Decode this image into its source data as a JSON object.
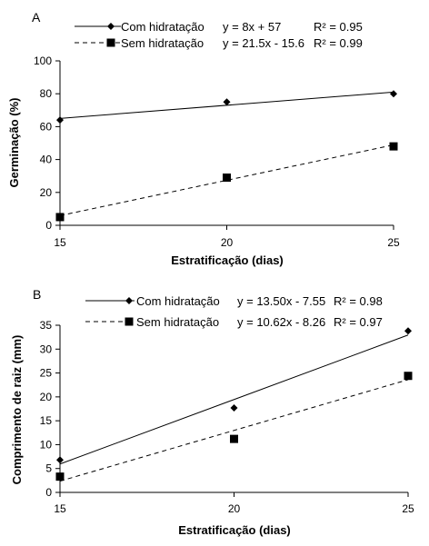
{
  "chart_data": [
    {
      "type": "scatter",
      "panel_label": "A",
      "xlabel": "Estratificação (dias)",
      "ylabel": "Germinação (%)",
      "xlim": [
        15,
        25
      ],
      "ylim": [
        0,
        100
      ],
      "x_ticks": [
        "15",
        "20",
        "25"
      ],
      "y_ticks": [
        "0",
        "20",
        "40",
        "60",
        "80",
        "100"
      ],
      "grid": false,
      "legend_position": "top",
      "series": [
        {
          "name": "Com hidratação",
          "marker": "diamond",
          "line_style": "solid",
          "equation": "y = 8x + 57",
          "r2": "R² = 0.95",
          "x": [
            15,
            20,
            25
          ],
          "values": [
            64,
            75,
            80
          ],
          "trend": [
            65,
            81
          ]
        },
        {
          "name": "Sem hidratação",
          "marker": "square",
          "line_style": "dashed",
          "equation": "y = 21.5x - 15.6",
          "r2": "R² = 0.99",
          "x": [
            15,
            20,
            25
          ],
          "values": [
            5,
            29,
            48
          ],
          "trend": [
            5.9,
            48.9
          ]
        }
      ]
    },
    {
      "type": "scatter",
      "panel_label": "B",
      "xlabel": "Estratificação (dias)",
      "ylabel": "Comprimento de raiz (mm)",
      "xlim": [
        15,
        25
      ],
      "ylim": [
        0,
        35
      ],
      "x_ticks": [
        "15",
        "20",
        "25"
      ],
      "y_ticks": [
        "0",
        "5",
        "10",
        "15",
        "20",
        "25",
        "30",
        "35"
      ],
      "grid": false,
      "legend_position": "top",
      "series": [
        {
          "name": "Com hidratação",
          "marker": "diamond",
          "line_style": "solid",
          "equation": "y = 13.50x - 7.55",
          "r2": "R² = 0.98",
          "x": [
            15,
            20,
            25
          ],
          "values": [
            6.8,
            17.7,
            33.8
          ],
          "trend": [
            5.95,
            32.95
          ]
        },
        {
          "name": "Sem hidratação",
          "marker": "square",
          "line_style": "dashed",
          "equation": "y = 10.62x - 8.26",
          "r2": "R² = 0.97",
          "x": [
            15,
            20,
            25
          ],
          "values": [
            3.3,
            11.2,
            24.4
          ],
          "trend": [
            2.36,
            23.6
          ]
        }
      ]
    }
  ]
}
